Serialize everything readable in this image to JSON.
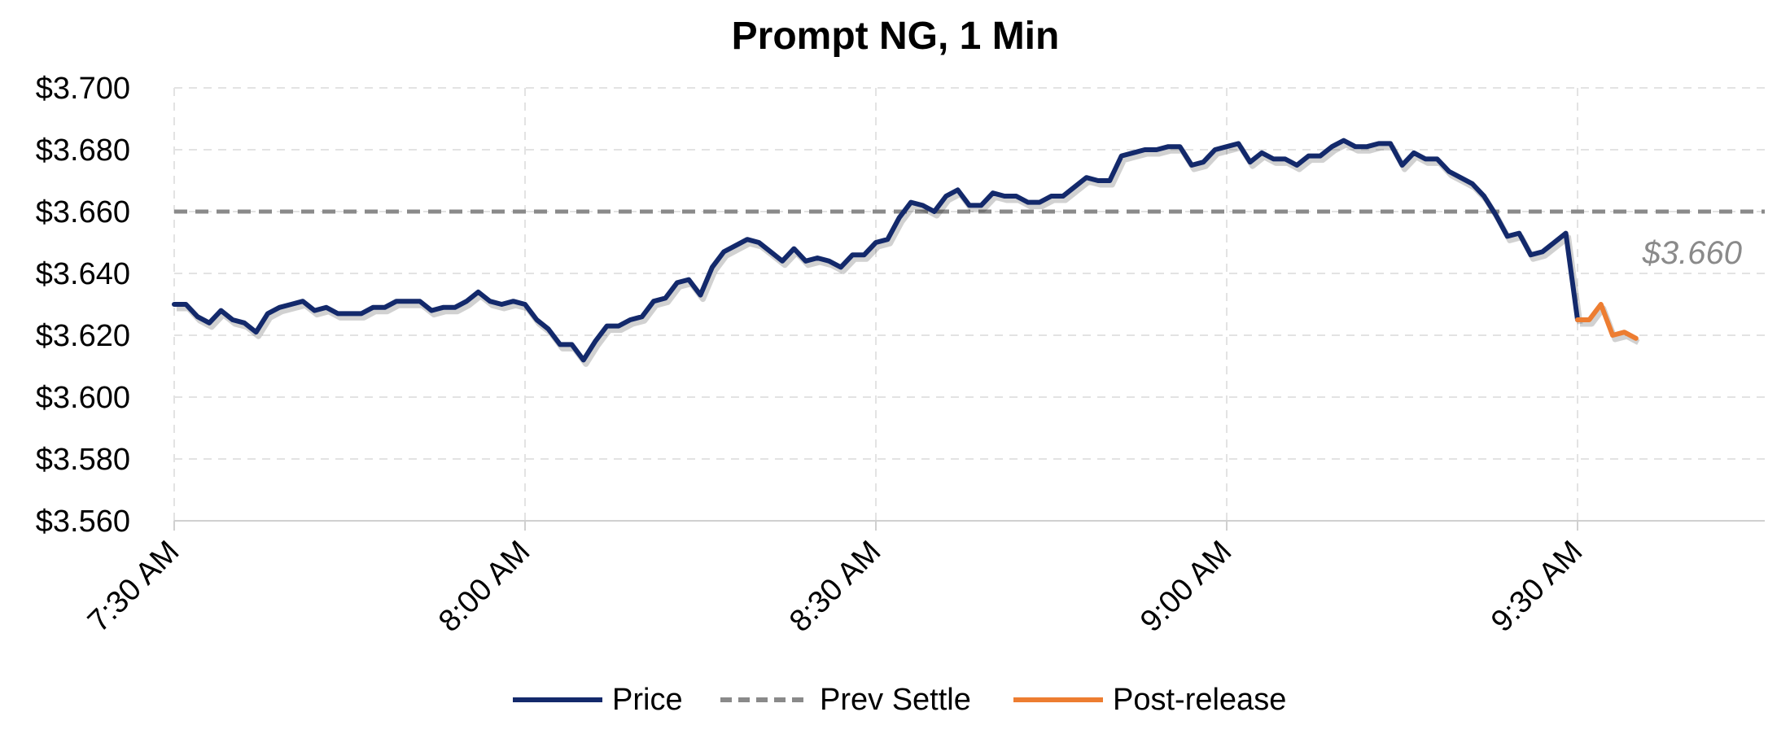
{
  "chart_data": {
    "type": "line",
    "title": "Prompt NG, 1 Min",
    "xlabel": "",
    "ylabel": "",
    "ylim": [
      3.56,
      3.7
    ],
    "y_ticks": [
      "$3.700",
      "$3.680",
      "$3.660",
      "$3.640",
      "$3.620",
      "$3.600",
      "$3.580",
      "$3.560"
    ],
    "x_range_minutes": [
      0,
      136
    ],
    "x_ticks": [
      {
        "label": "7:30 AM",
        "minute": 0
      },
      {
        "label": "8:00 AM",
        "minute": 30
      },
      {
        "label": "8:30 AM",
        "minute": 60
      },
      {
        "label": "9:00 AM",
        "minute": 90
      },
      {
        "label": "9:30 AM",
        "minute": 120
      }
    ],
    "grid": true,
    "legend_position": "bottom",
    "series": [
      {
        "name": "Price",
        "color": "#13296b",
        "style": "solid",
        "x_start_minute": 0,
        "values": [
          3.63,
          3.63,
          3.626,
          3.624,
          3.628,
          3.625,
          3.624,
          3.621,
          3.627,
          3.629,
          3.63,
          3.631,
          3.628,
          3.629,
          3.627,
          3.627,
          3.627,
          3.629,
          3.629,
          3.631,
          3.631,
          3.631,
          3.628,
          3.629,
          3.629,
          3.631,
          3.634,
          3.631,
          3.63,
          3.631,
          3.63,
          3.625,
          3.622,
          3.617,
          3.617,
          3.612,
          3.618,
          3.623,
          3.623,
          3.625,
          3.626,
          3.631,
          3.632,
          3.637,
          3.638,
          3.633,
          3.642,
          3.647,
          3.649,
          3.651,
          3.65,
          3.647,
          3.644,
          3.648,
          3.644,
          3.645,
          3.644,
          3.642,
          3.646,
          3.646,
          3.65,
          3.651,
          3.658,
          3.663,
          3.662,
          3.66,
          3.665,
          3.667,
          3.662,
          3.662,
          3.666,
          3.665,
          3.665,
          3.663,
          3.663,
          3.665,
          3.665,
          3.668,
          3.671,
          3.67,
          3.67,
          3.678,
          3.679,
          3.68,
          3.68,
          3.681,
          3.681,
          3.675,
          3.676,
          3.68,
          3.681,
          3.682,
          3.676,
          3.679,
          3.677,
          3.677,
          3.675,
          3.678,
          3.678,
          3.681,
          3.683,
          3.681,
          3.681,
          3.682,
          3.682,
          3.675,
          3.679,
          3.677,
          3.677,
          3.673,
          3.671,
          3.669,
          3.665,
          3.659,
          3.652,
          3.653,
          3.646,
          3.647,
          3.65,
          3.653,
          3.625
        ]
      },
      {
        "name": "Prev Settle",
        "color": "#8a8a8a",
        "style": "dashed",
        "constant": 3.66
      },
      {
        "name": "Post-release",
        "color": "#ed7d31",
        "style": "solid",
        "x_start_minute": 120,
        "values": [
          3.625,
          3.625,
          3.63,
          3.62,
          3.621,
          3.619
        ]
      }
    ],
    "annotations": [
      {
        "text": "$3.660",
        "y": 3.66
      }
    ]
  }
}
